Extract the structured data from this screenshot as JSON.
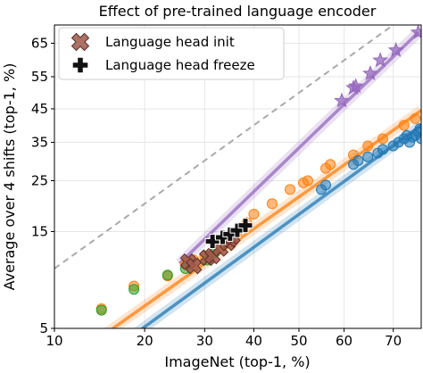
{
  "chart_data": {
    "type": "scatter",
    "title": "Effect of pre-trained language encoder",
    "xlabel": "ImageNet (top-1, %)",
    "ylabel": "Average over 4 shifts (top-1, %)",
    "xscale": "logit",
    "yscale": "logit",
    "xlim": [
      10,
      75
    ],
    "ylim": [
      5,
      70
    ],
    "xticks": [
      10,
      20,
      30,
      40,
      50,
      60,
      70
    ],
    "yticks": [
      5,
      15,
      25,
      35,
      45,
      55,
      65
    ],
    "grid": true,
    "legend_position": "top-left",
    "legend": [
      {
        "label": "Language head init",
        "marker": "x-filled",
        "color": "#a0584a"
      },
      {
        "label": "Language head freeze",
        "marker": "plus-filled",
        "color": "#000000"
      }
    ],
    "reference_line": {
      "style": "dashed",
      "color": "#aaaaaa",
      "points": [
        [
          10,
          10
        ],
        [
          75,
          75
        ]
      ]
    },
    "fit_lines": [
      {
        "color": "#9467bd",
        "points": [
          [
            25.5,
            10.6
          ],
          [
            74.5,
            68
          ]
        ]
      },
      {
        "color": "#ff7f0e",
        "points": [
          [
            13.5,
            4.2
          ],
          [
            75,
            44.5
          ]
        ]
      },
      {
        "color": "#1f77b4",
        "points": [
          [
            17,
            4.2
          ],
          [
            75,
            40
          ]
        ]
      }
    ],
    "series": [
      {
        "name": "Language head init",
        "marker": "x-filled",
        "color": "#a0584a",
        "points": [
          [
            27,
            10.8
          ],
          [
            28,
            10.3
          ],
          [
            30.5,
            11.3
          ],
          [
            31.5,
            11.5
          ],
          [
            33,
            12.5
          ],
          [
            34.5,
            13.3
          ],
          [
            35,
            13.8
          ],
          [
            35.5,
            14.2
          ]
        ]
      },
      {
        "name": "Language head freeze",
        "marker": "plus-filled",
        "color": "#000000",
        "points": [
          [
            31.5,
            13.5
          ],
          [
            33.5,
            14.1
          ],
          [
            35,
            14.6
          ],
          [
            36.5,
            15.2
          ],
          [
            38.2,
            16
          ]
        ]
      },
      {
        "marker": "star",
        "color": "#9467bd",
        "points": [
          [
            59.5,
            47.5
          ],
          [
            62,
            51.5
          ],
          [
            62.5,
            52
          ],
          [
            65.5,
            56
          ],
          [
            67.5,
            60
          ],
          [
            70.5,
            63
          ],
          [
            74.5,
            68
          ]
        ]
      },
      {
        "marker": "circle",
        "color": "#ff7f0e",
        "points": [
          [
            14.5,
            6.3
          ],
          [
            18.5,
            8.2
          ],
          [
            23.5,
            9.2
          ],
          [
            26.5,
            10.5
          ],
          [
            28,
            11
          ],
          [
            30,
            11.5
          ],
          [
            33,
            12.7
          ],
          [
            36.5,
            15
          ],
          [
            38.5,
            16.5
          ],
          [
            40,
            18
          ],
          [
            44,
            20
          ],
          [
            48,
            23
          ],
          [
            51,
            24.5
          ],
          [
            52,
            25
          ],
          [
            56,
            28
          ],
          [
            57,
            29
          ],
          [
            62,
            31.5
          ],
          [
            65,
            34
          ],
          [
            68,
            36
          ],
          [
            72,
            40
          ],
          [
            74,
            42
          ]
        ]
      },
      {
        "marker": "circle",
        "color": "#1f77b4",
        "points": [
          [
            55,
            23
          ],
          [
            56,
            24
          ],
          [
            62,
            29
          ],
          [
            63,
            30
          ],
          [
            65,
            31
          ],
          [
            67,
            32
          ],
          [
            68,
            33
          ],
          [
            70,
            34
          ],
          [
            71,
            35
          ],
          [
            72,
            36
          ],
          [
            72.5,
            37
          ],
          [
            73,
            35
          ],
          [
            73.5,
            36.5
          ],
          [
            74,
            37
          ],
          [
            74.5,
            38
          ],
          [
            74.8,
            39
          ],
          [
            75,
            36
          ]
        ]
      },
      {
        "marker": "circle",
        "color": "#2ca02c",
        "points": [
          [
            14.5,
            6.2
          ],
          [
            18.5,
            7.9
          ],
          [
            23.5,
            9.3
          ],
          [
            26.5,
            10
          ],
          [
            30.5,
            11
          ],
          [
            31,
            11.5
          ],
          [
            32,
            12
          ]
        ]
      }
    ]
  }
}
